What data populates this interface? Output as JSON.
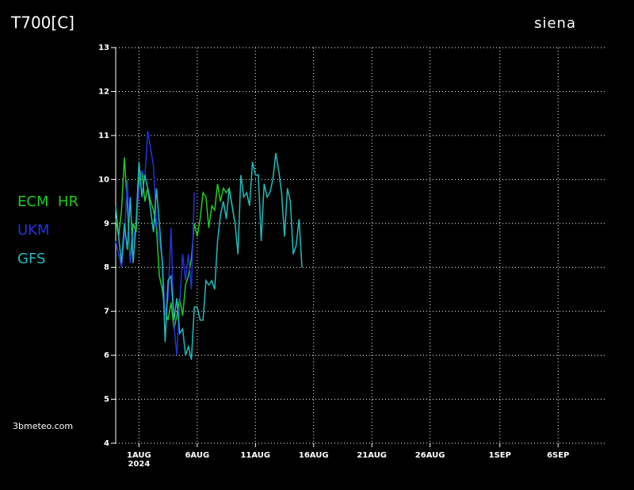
{
  "chart_data": {
    "type": "line",
    "title": "T700[C]",
    "location": "siena",
    "watermark": "3bmeteo.com",
    "x_year_label": "2024",
    "x": [
      "2024-07-30T00:00",
      "2024-07-30T06:00",
      "2024-07-30T12:00",
      "2024-07-30T18:00",
      "2024-07-31T00:00",
      "2024-07-31T06:00",
      "2024-07-31T12:00",
      "2024-07-31T18:00",
      "2024-08-01T00:00",
      "2024-08-01T06:00",
      "2024-08-01T12:00",
      "2024-08-01T18:00",
      "2024-08-02T00:00",
      "2024-08-02T06:00",
      "2024-08-02T12:00",
      "2024-08-02T18:00",
      "2024-08-03T00:00",
      "2024-08-03T06:00",
      "2024-08-03T12:00",
      "2024-08-03T18:00",
      "2024-08-04T00:00",
      "2024-08-04T06:00",
      "2024-08-04T12:00",
      "2024-08-04T18:00",
      "2024-08-05T00:00",
      "2024-08-05T06:00",
      "2024-08-05T12:00",
      "2024-08-05T18:00",
      "2024-08-06T00:00",
      "2024-08-06T06:00",
      "2024-08-06T12:00",
      "2024-08-06T18:00",
      "2024-08-07T00:00",
      "2024-08-07T06:00",
      "2024-08-07T12:00",
      "2024-08-07T18:00",
      "2024-08-08T00:00",
      "2024-08-08T06:00",
      "2024-08-08T12:00",
      "2024-08-08T18:00",
      "2024-08-09T00:00",
      "2024-08-09T06:00",
      "2024-08-09T12:00",
      "2024-08-09T18:00",
      "2024-08-10T00:00",
      "2024-08-10T06:00",
      "2024-08-10T12:00",
      "2024-08-10T18:00",
      "2024-08-11T00:00",
      "2024-08-11T06:00",
      "2024-08-11T12:00",
      "2024-08-11T18:00",
      "2024-08-12T00:00",
      "2024-08-12T06:00",
      "2024-08-12T12:00",
      "2024-08-12T18:00",
      "2024-08-13T00:00",
      "2024-08-13T06:00",
      "2024-08-13T12:00",
      "2024-08-13T18:00",
      "2024-08-14T00:00",
      "2024-08-14T06:00",
      "2024-08-14T12:00",
      "2024-08-14T18:00",
      "2024-08-15T00:00"
    ],
    "series": [
      {
        "name": "ECM  HR",
        "color": "#22cc22",
        "values": [
          9.1,
          8.7,
          9.3,
          10.5,
          9.4,
          8.1,
          9.0,
          8.8,
          10.0,
          10.2,
          9.5,
          9.8,
          9.5,
          9.3,
          8.9,
          7.8,
          7.5,
          7.0,
          6.8,
          7.2,
          6.6,
          6.9,
          7.3,
          6.9,
          7.6,
          7.8,
          8.2,
          9.0,
          8.7,
          9.1,
          9.7,
          9.6,
          8.9,
          9.4,
          9.3,
          9.9,
          9.5,
          9.8,
          9.7,
          9.8,
          9.4,
          9.0,
          null,
          null,
          null,
          null,
          null,
          null,
          null,
          null,
          null,
          null,
          null,
          null,
          null,
          null,
          null,
          null,
          null,
          null,
          null,
          null,
          null,
          null,
          null
        ]
      },
      {
        "name": "UKM",
        "color": "#2233dd",
        "values": [
          8.6,
          8.3,
          8.0,
          8.7,
          10.0,
          8.1,
          8.6,
          9.0,
          9.8,
          10.2,
          10.0,
          11.1,
          10.7,
          10.3,
          9.0,
          8.6,
          8.2,
          6.9,
          7.3,
          8.9,
          6.7,
          6.0,
          7.2,
          8.3,
          7.7,
          8.3,
          7.5,
          9.7,
          null,
          null,
          null,
          null,
          null,
          null,
          null,
          null,
          null,
          null,
          null,
          null,
          null,
          null,
          null,
          null,
          null,
          null,
          null,
          null,
          null,
          null,
          null,
          null,
          null,
          null,
          null,
          null,
          null,
          null,
          null,
          null,
          null,
          null,
          null,
          null,
          null
        ]
      },
      {
        "name": "GFS",
        "color": "#22bbbb",
        "values": [
          9.4,
          8.7,
          8.1,
          9.0,
          8.4,
          9.6,
          8.1,
          9.0,
          10.4,
          9.6,
          10.1,
          9.8,
          9.3,
          8.8,
          9.8,
          9.0,
          8.1,
          6.3,
          7.7,
          7.8,
          6.8,
          7.3,
          6.5,
          6.6,
          6.0,
          6.2,
          5.9,
          7.1,
          7.1,
          6.8,
          6.8,
          7.7,
          7.6,
          7.7,
          7.5,
          8.6,
          9.2,
          9.5,
          9.1,
          9.8,
          9.4,
          9.0,
          8.3,
          10.1,
          9.6,
          9.7,
          9.4,
          10.4,
          10.1,
          10.1,
          8.6,
          9.9,
          9.6,
          9.7,
          10.0,
          10.6,
          10.2,
          9.7,
          8.7,
          9.8,
          9.5,
          8.3,
          8.5,
          9.1,
          8.0
        ]
      }
    ],
    "xlim": [
      "2024-07-30",
      "2024-09-10"
    ],
    "xticks": [
      {
        "value": "2024-08-01",
        "label": "1AUG"
      },
      {
        "value": "2024-08-06",
        "label": "6AUG"
      },
      {
        "value": "2024-08-11",
        "label": "11AUG"
      },
      {
        "value": "2024-08-16",
        "label": "16AUG"
      },
      {
        "value": "2024-08-21",
        "label": "21AUG"
      },
      {
        "value": "2024-08-26",
        "label": "26AUG"
      },
      {
        "value": "2024-09-01",
        "label": "1SEP"
      },
      {
        "value": "2024-09-06",
        "label": "6SEP"
      }
    ],
    "ylim": [
      4,
      13
    ],
    "yticks": [
      4,
      5,
      6,
      7,
      8,
      9,
      10,
      11,
      12,
      13
    ],
    "grid": true
  }
}
